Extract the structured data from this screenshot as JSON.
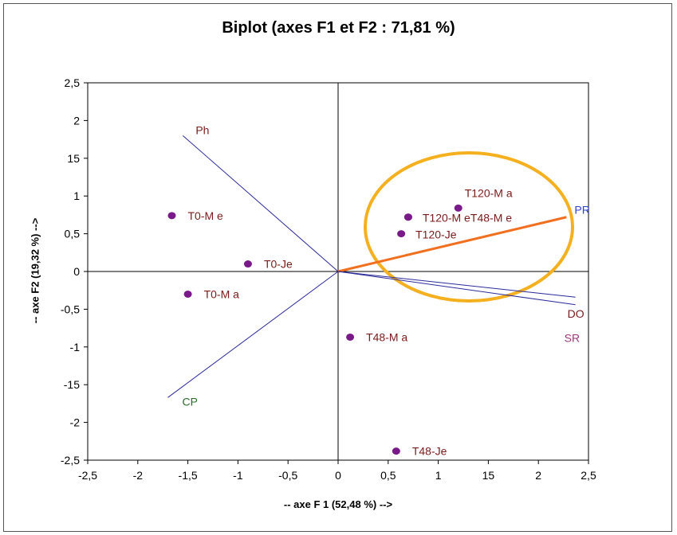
{
  "chart_data": {
    "type": "scatter",
    "title": "Biplot (axes F1 et F2 : 71,81 %)",
    "xlabel": "-- axe F 1 (52,48 %) -->",
    "ylabel": "-- axe F2 (19,32 %) -->",
    "xlim": [
      -2.5,
      2.5
    ],
    "ylim": [
      -2.5,
      2.5
    ],
    "x_ticks": [
      "-2,5",
      "-2",
      "-1,5",
      "-1",
      "-0,5",
      "0",
      "0,5",
      "1",
      "15",
      "2",
      "2,5"
    ],
    "y_ticks": [
      "2,5",
      "2",
      "15",
      "1",
      "0,5",
      "0",
      "-0,5",
      "-1",
      "-15",
      "-2",
      "-2,5"
    ],
    "grid": false,
    "observations": [
      {
        "label": "T0-M e",
        "x": -1.66,
        "y": 0.74
      },
      {
        "label": "T0-Je",
        "x": -0.9,
        "y": 0.1
      },
      {
        "label": "T0-M a",
        "x": -1.5,
        "y": -0.3
      },
      {
        "label": "T120-M a",
        "x": 1.2,
        "y": 0.84
      },
      {
        "label": "T120-M e",
        "x": 0.7,
        "y": 0.72
      },
      {
        "label": "T48-M e",
        "x": 0.7,
        "y": 0.72
      },
      {
        "label": "T120-Je",
        "x": 0.63,
        "y": 0.5
      },
      {
        "label": "T48-M a",
        "x": 0.12,
        "y": -0.87
      },
      {
        "label": "T48-Je",
        "x": 0.58,
        "y": -2.38
      }
    ],
    "variables": [
      {
        "label": "Ph",
        "x": -1.55,
        "y": 1.8,
        "color": "#7a1a1a"
      },
      {
        "label": "CP",
        "x": -1.7,
        "y": -1.67,
        "color": "#2e6b2e"
      },
      {
        "label": "PR",
        "x": 2.28,
        "y": 0.72,
        "color": "#3040cc"
      },
      {
        "label": "DO",
        "x": 2.37,
        "y": -0.34,
        "color": "#7a1a1a"
      },
      {
        "label": "SR",
        "x": 2.37,
        "y": -0.44,
        "color": "#9a3a7a"
      }
    ],
    "colors": {
      "observation_marker": "#7a1a8a",
      "variable_line": "#2a2a9a",
      "highlight_line": "#f07020",
      "highlight_ellipse": "#f5b020"
    }
  }
}
